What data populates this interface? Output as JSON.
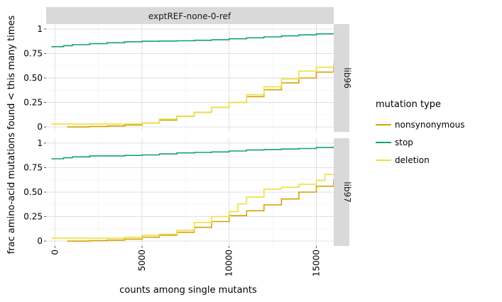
{
  "chart_data": {
    "type": "line",
    "facet_column_label": "exptREF-none-0-ref",
    "xlabel": "counts among single mutants",
    "ylabel": "frac amino-acid mutations found < this many times",
    "xlim": [
      -500,
      16000
    ],
    "ylim": [
      -0.05,
      1.05
    ],
    "x_ticks": [
      0,
      5000,
      10000,
      15000
    ],
    "y_ticks": [
      0,
      0.25,
      0.5,
      0.75,
      1
    ],
    "y_tick_labels": [
      "0",
      "0.25",
      "0.50",
      "0.75",
      "1"
    ],
    "grid": true,
    "legend": {
      "title": "mutation type",
      "position": "right",
      "entries": [
        {
          "label": "nonsynonymous",
          "color": "#d9a000"
        },
        {
          "label": "stop",
          "color": "#14a07a"
        },
        {
          "label": "deletion",
          "color": "#ece040"
        }
      ]
    },
    "panels": [
      {
        "label": "lib96",
        "series": [
          {
            "name": "stop",
            "color": "#14a07a",
            "x": [
              -200,
              500,
              1000,
              2000,
              3000,
              4000,
              5000,
              6000,
              7000,
              8000,
              9000,
              10000,
              11000,
              12000,
              13000,
              14000,
              15000,
              16000
            ],
            "y": [
              0.82,
              0.83,
              0.84,
              0.85,
              0.86,
              0.87,
              0.875,
              0.877,
              0.88,
              0.885,
              0.89,
              0.9,
              0.91,
              0.92,
              0.93,
              0.94,
              0.95,
              0.955
            ]
          },
          {
            "name": "nonsynonymous",
            "color": "#d9a000",
            "x": [
              700,
              2000,
              3000,
              4000,
              5000,
              6000,
              7000,
              8000,
              9000,
              10000,
              11000,
              12000,
              13000,
              14000,
              15000,
              16000
            ],
            "y": [
              0.0,
              0.005,
              0.01,
              0.02,
              0.04,
              0.07,
              0.11,
              0.15,
              0.2,
              0.25,
              0.31,
              0.38,
              0.45,
              0.5,
              0.56,
              0.61
            ]
          },
          {
            "name": "deletion",
            "color": "#ece040",
            "x": [
              -200,
              1000,
              2000,
              3000,
              4000,
              5000,
              6000,
              7000,
              8000,
              9000,
              10000,
              11000,
              12000,
              13000,
              14000,
              15000,
              16000
            ],
            "y": [
              0.03,
              0.03,
              0.03,
              0.03,
              0.03,
              0.04,
              0.08,
              0.11,
              0.15,
              0.2,
              0.25,
              0.33,
              0.41,
              0.49,
              0.57,
              0.61,
              0.66
            ]
          }
        ]
      },
      {
        "label": "lib97",
        "series": [
          {
            "name": "stop",
            "color": "#14a07a",
            "x": [
              -200,
              500,
              1000,
              2000,
              3000,
              4000,
              5000,
              6000,
              7000,
              8000,
              9000,
              10000,
              11000,
              12000,
              13000,
              14000,
              15000,
              16000
            ],
            "y": [
              0.84,
              0.85,
              0.86,
              0.87,
              0.87,
              0.875,
              0.88,
              0.89,
              0.9,
              0.905,
              0.91,
              0.92,
              0.93,
              0.935,
              0.94,
              0.945,
              0.955,
              0.965
            ]
          },
          {
            "name": "nonsynonymous",
            "color": "#d9a000",
            "x": [
              700,
              2000,
              3000,
              4000,
              5000,
              6000,
              7000,
              8000,
              9000,
              10000,
              11000,
              12000,
              13000,
              14000,
              15000,
              16000
            ],
            "y": [
              0.0,
              0.005,
              0.01,
              0.02,
              0.04,
              0.06,
              0.09,
              0.14,
              0.2,
              0.26,
              0.31,
              0.37,
              0.43,
              0.5,
              0.56,
              0.63
            ]
          },
          {
            "name": "deletion",
            "color": "#ece040",
            "x": [
              -200,
              1000,
              2000,
              3000,
              4000,
              5000,
              6000,
              7000,
              8000,
              9000,
              10000,
              10500,
              11000,
              12000,
              13000,
              14000,
              15000,
              15500,
              16000
            ],
            "y": [
              0.03,
              0.03,
              0.03,
              0.03,
              0.04,
              0.06,
              0.07,
              0.11,
              0.19,
              0.25,
              0.3,
              0.38,
              0.45,
              0.53,
              0.55,
              0.58,
              0.62,
              0.68,
              0.68
            ]
          }
        ]
      }
    ]
  }
}
